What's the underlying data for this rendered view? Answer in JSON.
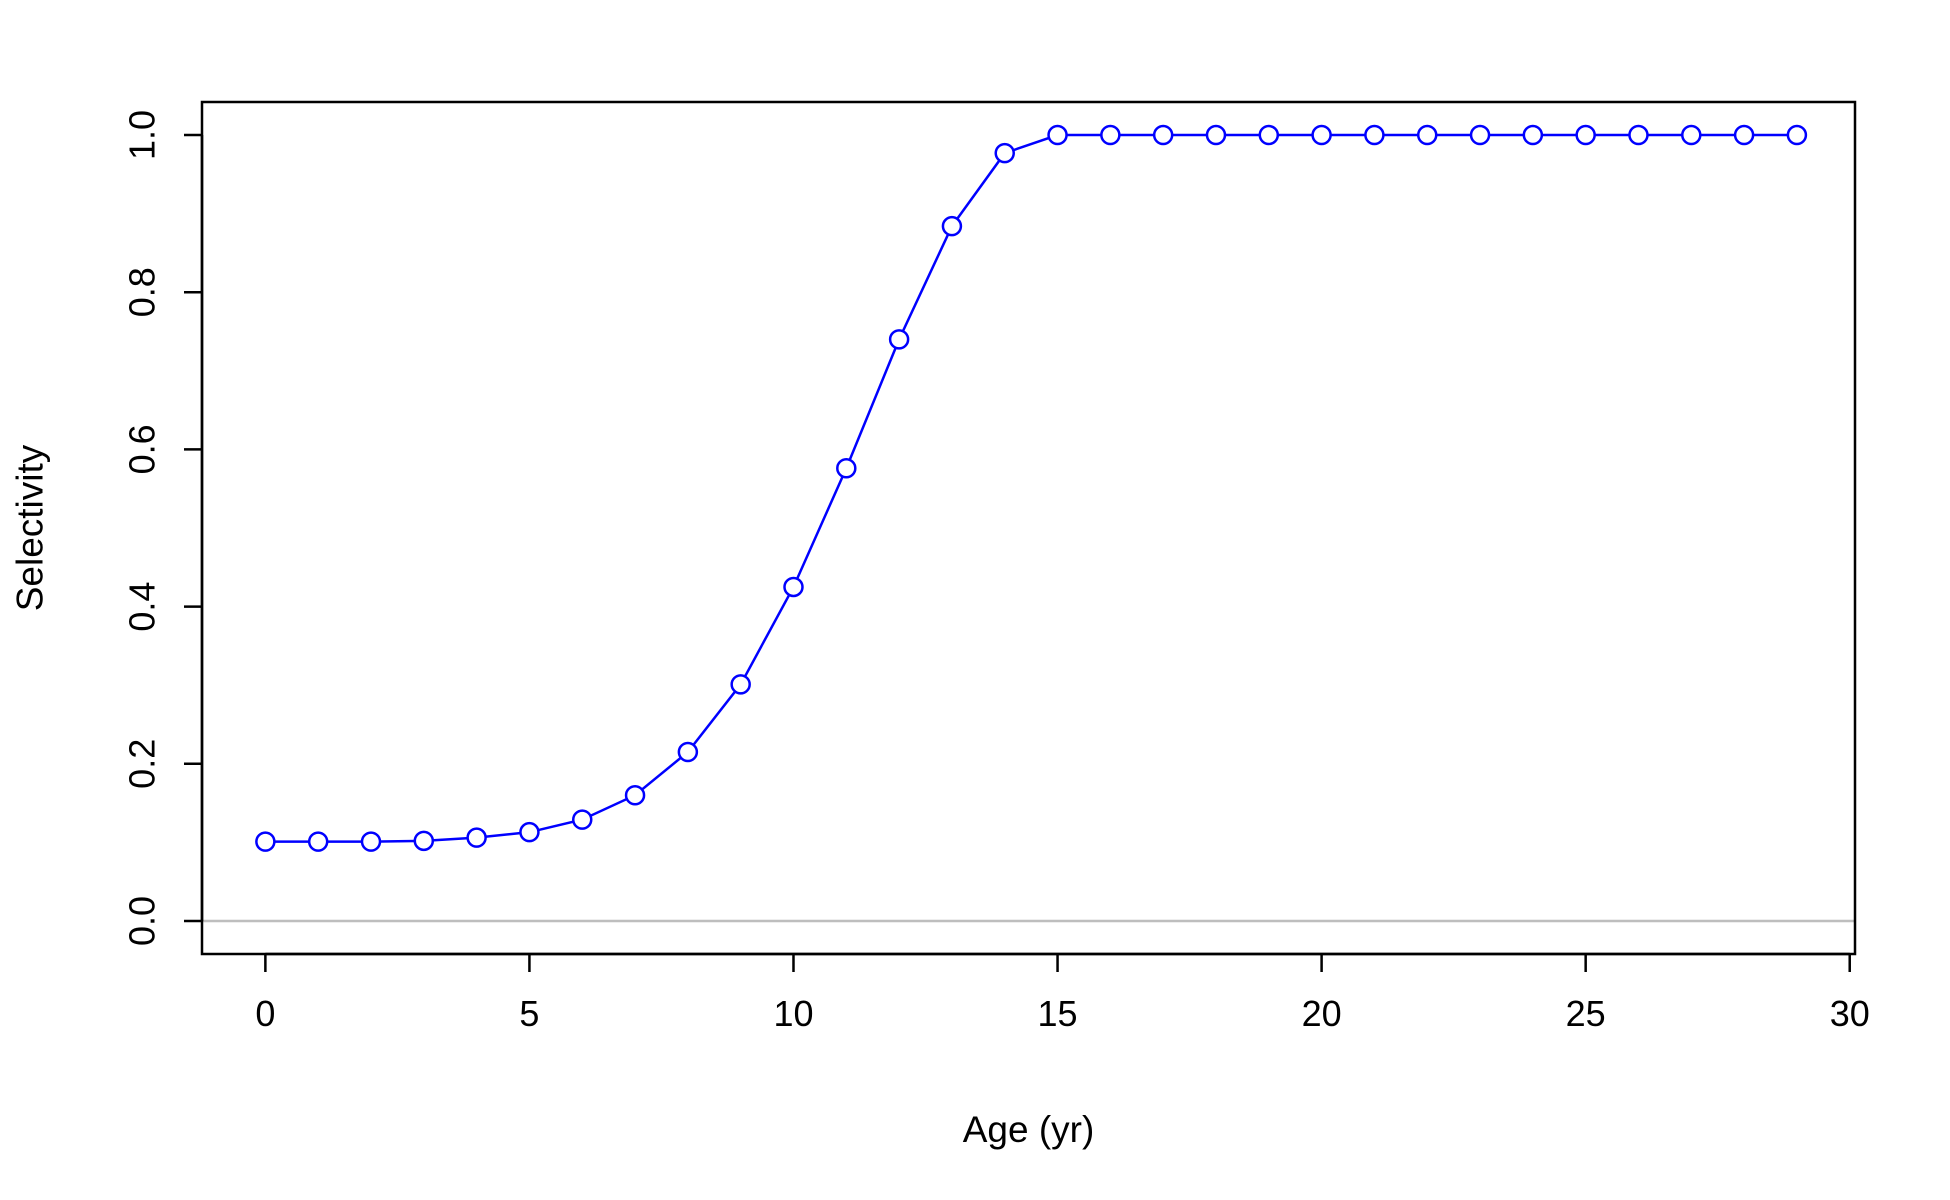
{
  "chart_data": {
    "type": "line",
    "title": "",
    "xlabel": "Age (yr)",
    "ylabel": "Selectivity",
    "xlim": [
      -1.2,
      30.1
    ],
    "ylim": [
      -0.042,
      1.042
    ],
    "x_ticks": [
      0,
      5,
      10,
      15,
      20,
      25,
      30
    ],
    "x_tick_labels": [
      "0",
      "5",
      "10",
      "15",
      "20",
      "25",
      "30"
    ],
    "y_ticks": [
      0.0,
      0.2,
      0.4,
      0.6,
      0.8,
      1.0
    ],
    "y_tick_labels": [
      "0.0",
      "0.2",
      "0.4",
      "0.6",
      "0.8",
      "1.0"
    ],
    "grid": false,
    "legend": "none",
    "reference_line": {
      "y": 0,
      "color": "#bebebe"
    },
    "series": [
      {
        "color": "#0000ff",
        "marker": "open-circle",
        "x": [
          0,
          1,
          2,
          3,
          4,
          5,
          6,
          7,
          8,
          9,
          10,
          11,
          12,
          13,
          14,
          15,
          16,
          17,
          18,
          19,
          20,
          21,
          22,
          23,
          24,
          25,
          26,
          27,
          28,
          29
        ],
        "y": [
          0.101,
          0.101,
          0.101,
          0.102,
          0.106,
          0.113,
          0.129,
          0.16,
          0.215,
          0.301,
          0.425,
          0.576,
          0.74,
          0.884,
          0.977,
          1.0,
          1.0,
          1.0,
          1.0,
          1.0,
          1.0,
          1.0,
          1.0,
          1.0,
          1.0,
          1.0,
          1.0,
          1.0,
          1.0,
          1.0
        ]
      }
    ]
  }
}
